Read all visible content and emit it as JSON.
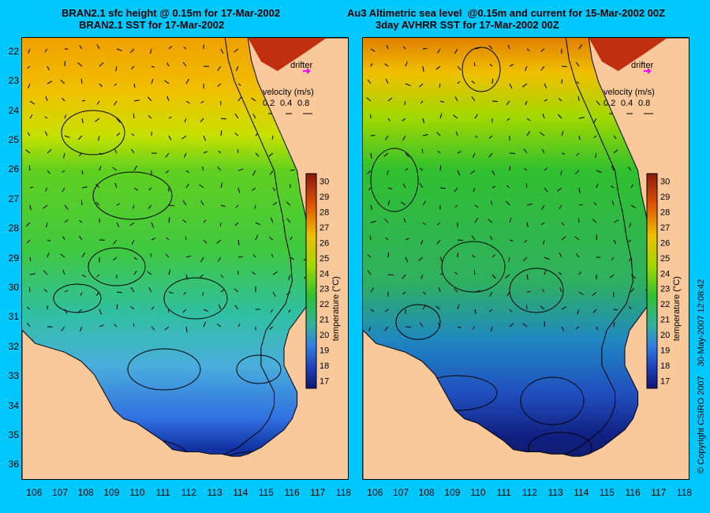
{
  "titles": {
    "left_line1": "BRAN2.1 sfc height @ 0.15m for 17-Mar-2002",
    "left_line2": "BRAN2.1 SST for 17-Mar-2002",
    "right_line1": "Au3 Altimetric sea level  @0.15m and current for 15-Mar-2002 00Z",
    "right_line2": "3day AVHRR SST for 17-Mar-2002 00Z"
  },
  "axes": {
    "lat_ticks": [
      22,
      23,
      24,
      25,
      26,
      27,
      28,
      29,
      30,
      31,
      32,
      33,
      34,
      35,
      36
    ],
    "lon_ticks": [
      106,
      107,
      108,
      109,
      110,
      111,
      112,
      113,
      114,
      115,
      116,
      117,
      118
    ],
    "lat_range": [
      21.5,
      36.5
    ],
    "lon_range": [
      105.5,
      118.2
    ]
  },
  "legend": {
    "drifter_label": "drifter",
    "velocity_label": "velocity (m/s)",
    "velocity_values": [
      "0.2",
      "0.4",
      "0.8"
    ],
    "colorbar_ticks": [
      30,
      29,
      28,
      27,
      26,
      25,
      24,
      23,
      22,
      21,
      20,
      19,
      18,
      17
    ],
    "colorbar_label": "temperature (°C)",
    "colorbar_range": [
      16.5,
      30.5
    ]
  },
  "colors": {
    "background": "#00c8ff",
    "land": "#f9c89b",
    "drifter": "#ff00ff"
  },
  "footer": {
    "copyright": "© Copyright CSIRO 2007",
    "timestamp": "30-May-2007 12:08:42"
  }
}
